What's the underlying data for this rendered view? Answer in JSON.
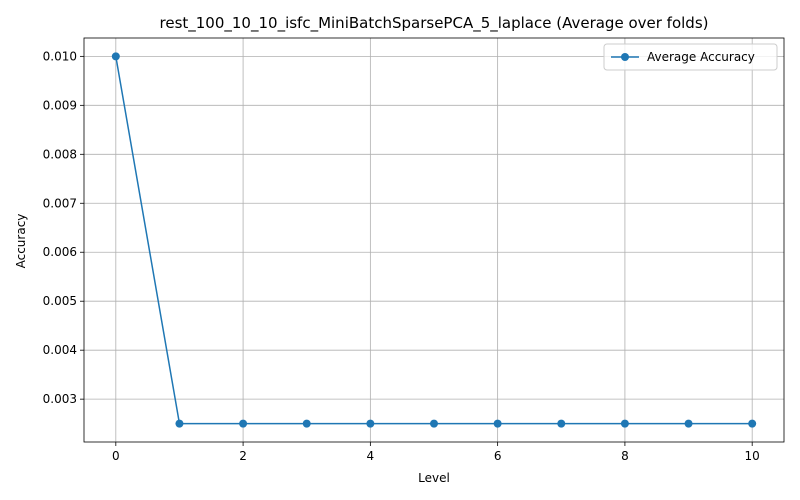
{
  "chart_data": {
    "type": "line",
    "title": "rest_100_10_10_isfc_MiniBatchSparsePCA_5_laplace (Average over folds)",
    "xlabel": "Level",
    "ylabel": "Accuracy",
    "x": [
      0,
      1,
      2,
      3,
      4,
      5,
      6,
      7,
      8,
      9,
      10
    ],
    "series": [
      {
        "name": "Average Accuracy",
        "values": [
          0.01,
          0.0025,
          0.0025,
          0.0025,
          0.0025,
          0.0025,
          0.0025,
          0.0025,
          0.0025,
          0.0025,
          0.0025
        ],
        "color": "#1f77b4",
        "marker": "circle"
      }
    ],
    "xlim": [
      -0.5,
      10.5
    ],
    "ylim": [
      0.002125,
      0.010375
    ],
    "xticks": [
      0,
      2,
      4,
      6,
      8,
      10
    ],
    "xtick_labels": [
      "0",
      "2",
      "4",
      "6",
      "8",
      "10"
    ],
    "yticks": [
      0.003,
      0.004,
      0.005,
      0.006,
      0.007,
      0.008,
      0.009,
      0.01
    ],
    "ytick_labels": [
      "0.003",
      "0.004",
      "0.005",
      "0.006",
      "0.007",
      "0.008",
      "0.009",
      "0.010"
    ],
    "grid": true,
    "legend_position": "top-right"
  }
}
